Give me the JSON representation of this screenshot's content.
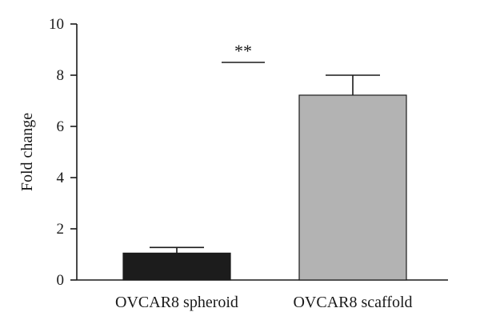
{
  "chart_data": {
    "type": "bar",
    "categories": [
      "OVCAR8 spheroid",
      "OVCAR8 scaffold"
    ],
    "values": [
      1.05,
      7.22
    ],
    "errors": [
      0.22,
      0.78
    ],
    "colors": [
      "#1c1c1c",
      "#b3b3b3"
    ],
    "title": "",
    "xlabel": "",
    "ylabel": "Fold change",
    "ylim": [
      0,
      10
    ],
    "yticks": [
      0,
      2,
      4,
      6,
      8,
      10
    ],
    "grid": false,
    "annotation": {
      "text": "**",
      "y": 8.5
    }
  }
}
